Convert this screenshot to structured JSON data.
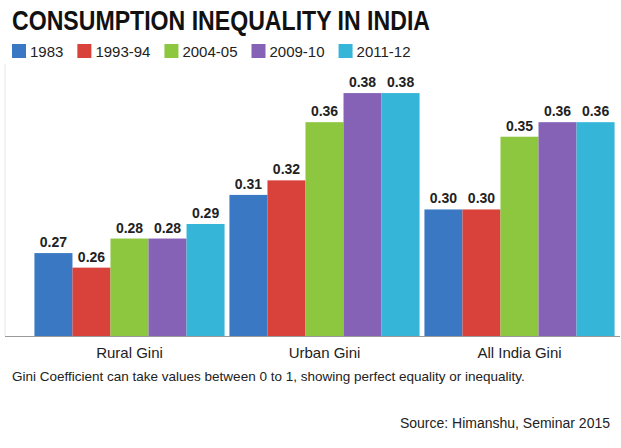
{
  "chart_data": {
    "type": "bar",
    "title": "CONSUMPTION INEQUALITY IN INDIA",
    "note": "Gini Coefficient can take values between 0 to 1, showing perfect equality or inequality.",
    "source": "Source: Himanshu, Seminar 2015",
    "categories": [
      "Rural Gini",
      "Urban Gini",
      "All India Gini"
    ],
    "series": [
      {
        "name": "1983",
        "color": "#3a78c4",
        "values": [
          0.27,
          0.31,
          0.3
        ],
        "value_labels": [
          "0.27",
          "0.31",
          "0.30"
        ]
      },
      {
        "name": "1993-94",
        "color": "#d9413b",
        "values": [
          0.26,
          0.32,
          0.3
        ],
        "value_labels": [
          "0.26",
          "0.32",
          "0.30"
        ]
      },
      {
        "name": "2004-05",
        "color": "#8dc63f",
        "values": [
          0.28,
          0.36,
          0.35
        ],
        "value_labels": [
          "0.28",
          "0.36",
          "0.35"
        ]
      },
      {
        "name": "2009-10",
        "color": "#8562b6",
        "values": [
          0.28,
          0.38,
          0.36
        ],
        "value_labels": [
          "0.28",
          "0.38",
          "0.36"
        ]
      },
      {
        "name": "2011-12",
        "color": "#35b5d8",
        "values": [
          0.29,
          0.38,
          0.36
        ],
        "value_labels": [
          "0.29",
          "0.38",
          "0.36"
        ]
      }
    ],
    "ylim": [
      0.213,
      0.4
    ],
    "tick_labels": "x",
    "data_labels": true,
    "legend": "top",
    "grid": false
  }
}
